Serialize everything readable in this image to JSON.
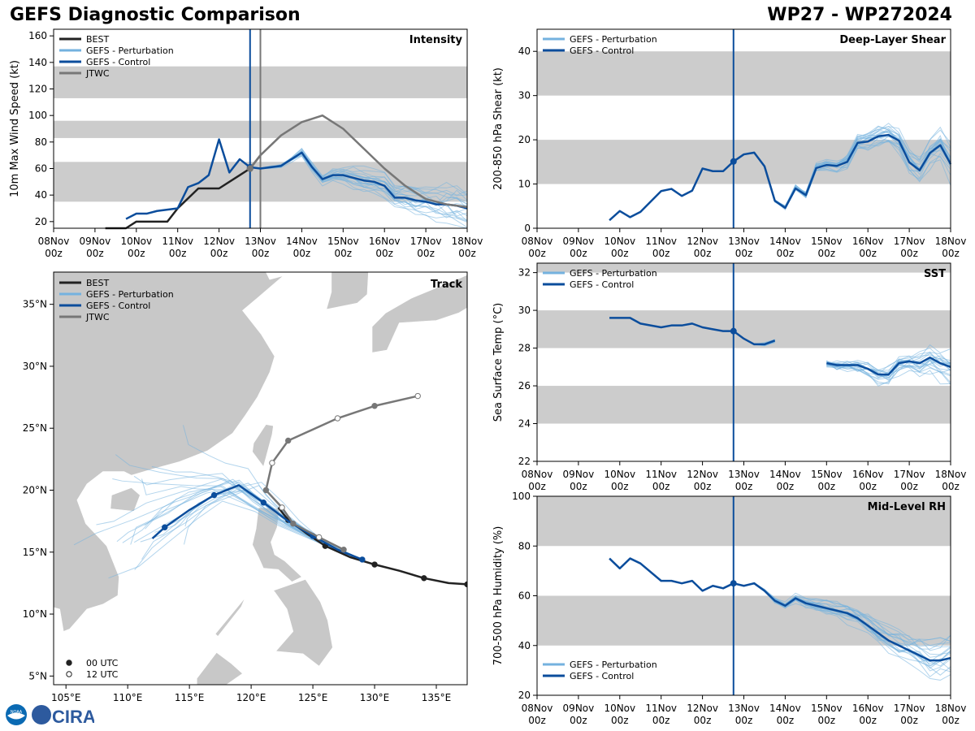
{
  "header": {
    "title": "GEFS Diagnostic Comparison",
    "storm": "WP27 - WP272024"
  },
  "colors": {
    "best": "#222222",
    "perturbation": "#74b2df",
    "control": "#0b4d9c",
    "jtwc": "#777777",
    "band": "#cccccc",
    "land": "#c8c8c8"
  },
  "time_ticks": [
    "08Nov 00z",
    "09Nov 00z",
    "10Nov 00z",
    "11Nov 00z",
    "12Nov 00z",
    "13Nov 00z",
    "14Nov 00z",
    "15Nov 00z",
    "16Nov 00z",
    "17Nov 00z",
    "18Nov 00z"
  ],
  "logo": {
    "left": "NOAA",
    "right": "CIRA"
  },
  "chart_data": [
    {
      "id": "intensity",
      "type": "line",
      "title": "Intensity",
      "ylabel": "10m Max Wind Speed (kt)",
      "xlim": [
        0,
        10
      ],
      "ylim": [
        15,
        165
      ],
      "yticks": [
        20,
        40,
        60,
        80,
        100,
        120,
        140,
        160
      ],
      "bands": [
        [
          35,
          65
        ],
        [
          83,
          96
        ],
        [
          113,
          137
        ]
      ],
      "init_lines": [
        {
          "x": 4.75,
          "color": "control"
        },
        {
          "x": 5.0,
          "color": "jtwc"
        }
      ],
      "legend": [
        "BEST",
        "GEFS - Perturbation",
        "GEFS - Control",
        "JTWC"
      ],
      "series": [
        {
          "name": "BEST",
          "x": [
            1.25,
            1.75,
            2.0,
            2.25,
            2.5,
            2.75,
            3.0,
            3.5,
            4.0,
            4.5,
            4.75,
            5.0
          ],
          "values": [
            15,
            15,
            20,
            20,
            20,
            20,
            30,
            45,
            45,
            55,
            60,
            70
          ]
        },
        {
          "name": "GEFS - Control",
          "x": [
            1.75,
            2.0,
            2.25,
            2.5,
            3.0,
            3.25,
            3.5,
            3.75,
            4.0,
            4.25,
            4.5,
            4.75,
            5.0,
            5.25,
            5.5,
            5.75,
            6.0,
            6.25,
            6.5,
            6.75,
            7.0,
            7.25,
            7.5,
            7.75,
            8.0,
            8.25,
            8.5,
            8.75,
            9.0,
            9.25,
            9.5,
            9.75,
            10.0
          ],
          "values": [
            22,
            26,
            26,
            28,
            30,
            46,
            49,
            55,
            82,
            57,
            67,
            61,
            60,
            61,
            62,
            67,
            72,
            61,
            52,
            55,
            55,
            53,
            51,
            50,
            47,
            38,
            38,
            36,
            35,
            33,
            33,
            32,
            30
          ]
        },
        {
          "name": "JTWC",
          "x": [
            4.75,
            5.0,
            5.5,
            6.0,
            6.5,
            7.0,
            7.5,
            8.0,
            8.5,
            9.0,
            9.5,
            10.0
          ],
          "values": [
            60,
            70,
            85,
            95,
            100,
            90,
            75,
            60,
            47,
            37,
            33,
            31
          ]
        }
      ]
    },
    {
      "id": "track",
      "type": "scatter",
      "title": "Track",
      "xlim": [
        104,
        137.5
      ],
      "ylim": [
        4.3,
        37.6
      ],
      "xticks": [
        105,
        110,
        115,
        120,
        125,
        130,
        135
      ],
      "xticklabels": [
        "105°E",
        "110°E",
        "115°E",
        "120°E",
        "125°E",
        "130°E",
        "135°E"
      ],
      "yticks": [
        5,
        10,
        15,
        20,
        25,
        30,
        35
      ],
      "yticklabels": [
        "5°N",
        "10°N",
        "15°N",
        "20°N",
        "25°N",
        "30°N",
        "35°N"
      ],
      "legend": [
        "BEST",
        "GEFS - Perturbation",
        "GEFS - Control",
        "JTWC"
      ],
      "marker_legend": [
        "00 UTC",
        "12 UTC"
      ],
      "series": [
        {
          "name": "BEST",
          "lon": [
            137.5,
            136.0,
            134.0,
            132.0,
            130.0,
            128.0,
            126.0,
            124.5,
            123.0,
            122.2
          ],
          "lat": [
            12.4,
            12.5,
            12.9,
            13.5,
            14.0,
            14.6,
            15.5,
            16.5,
            17.6,
            18.6
          ]
        },
        {
          "name": "GEFS - Control",
          "lon": [
            129,
            127,
            125,
            123,
            121,
            119,
            117,
            115,
            113,
            112
          ],
          "lat": [
            14.4,
            15.2,
            16.3,
            17.5,
            19.0,
            20.4,
            19.6,
            18.4,
            17.0,
            16.1
          ]
        },
        {
          "name": "JTWC",
          "lon": [
            127.5,
            125.5,
            123.4,
            122.5,
            121.2,
            121.7,
            123,
            127,
            130,
            133.5
          ],
          "lat": [
            15.2,
            16.2,
            17.3,
            18.6,
            20.0,
            22.2,
            24.0,
            25.8,
            26.8,
            27.6
          ]
        }
      ]
    },
    {
      "id": "shear",
      "type": "line",
      "title": "Deep-Layer Shear",
      "ylabel": "200-850 hPa Shear (kt)",
      "xlim": [
        0,
        10
      ],
      "ylim": [
        0,
        45
      ],
      "yticks": [
        0,
        10,
        20,
        30,
        40
      ],
      "bands": [
        [
          10,
          20
        ],
        [
          30,
          40
        ]
      ],
      "init_lines": [
        {
          "x": 4.75,
          "color": "control"
        }
      ],
      "legend": [
        "GEFS - Perturbation",
        "GEFS - Control"
      ],
      "series": [
        {
          "name": "GEFS - Control",
          "x": [
            1.75,
            2.0,
            2.25,
            2.5,
            3.0,
            3.25,
            3.5,
            3.75,
            4.0,
            4.25,
            4.5,
            4.75,
            5.0,
            5.25,
            5.5,
            5.75,
            6.0,
            6.25,
            6.5,
            6.75,
            7.0,
            7.25,
            7.5,
            7.75,
            8.0,
            8.25,
            8.5,
            8.75,
            9.0,
            9.25,
            9.5,
            9.75,
            10.0
          ],
          "values": [
            1.8,
            3.9,
            2.5,
            3.7,
            8.4,
            8.9,
            7.3,
            8.5,
            13.5,
            12.9,
            12.9,
            15.1,
            16.7,
            17.1,
            14.0,
            6.2,
            4.6,
            9.0,
            7.5,
            13.6,
            14.3,
            14.1,
            15.0,
            19.3,
            19.6,
            20.8,
            21.1,
            19.8,
            14.9,
            13.1,
            17.0,
            18.8,
            14.5
          ]
        }
      ]
    },
    {
      "id": "sst",
      "type": "line",
      "title": "SST",
      "ylabel": "Sea Surface Temp (°C)",
      "xlim": [
        0,
        10
      ],
      "ylim": [
        22,
        32.5
      ],
      "yticks": [
        22,
        24,
        26,
        28,
        30,
        32
      ],
      "bands": [
        [
          24,
          26
        ],
        [
          28,
          30
        ],
        [
          32,
          32.5
        ]
      ],
      "init_lines": [
        {
          "x": 4.75,
          "color": "control"
        }
      ],
      "legend": [
        "GEFS - Perturbation",
        "GEFS - Control"
      ],
      "series": [
        {
          "name": "GEFS - Control",
          "x": [
            1.75,
            2.0,
            2.25,
            2.5,
            3.0,
            3.25,
            3.5,
            3.75,
            4.0,
            4.25,
            4.5,
            4.75,
            5.0,
            5.25,
            5.5,
            5.75,
            6.0
          ],
          "values": [
            29.6,
            29.6,
            29.6,
            29.3,
            29.1,
            29.2,
            29.2,
            29.3,
            29.1,
            29.0,
            28.9,
            28.9,
            28.5,
            28.2,
            28.2,
            28.4,
            null
          ]
        },
        {
          "name": "GEFS - Control (cont)",
          "x": [
            7.0,
            7.25,
            7.5,
            7.75,
            8.0,
            8.25,
            8.5,
            8.75,
            9.0,
            9.25,
            9.5,
            9.75,
            10.0
          ],
          "values": [
            27.2,
            27.1,
            27.1,
            27.1,
            26.9,
            26.6,
            26.6,
            27.2,
            27.3,
            27.2,
            27.5,
            27.2,
            27.0
          ]
        }
      ]
    },
    {
      "id": "rh",
      "type": "line",
      "title": "Mid-Level RH",
      "ylabel": "700-500 hPa Humidity (%)",
      "xlim": [
        0,
        10
      ],
      "ylim": [
        20,
        100
      ],
      "yticks": [
        20,
        40,
        60,
        80,
        100
      ],
      "bands": [
        [
          40,
          60
        ],
        [
          80,
          100
        ]
      ],
      "init_lines": [
        {
          "x": 4.75,
          "color": "control"
        }
      ],
      "legend": [
        "GEFS - Perturbation",
        "GEFS - Control"
      ],
      "series": [
        {
          "name": "GEFS - Control",
          "x": [
            1.75,
            2.0,
            2.25,
            2.5,
            3.0,
            3.25,
            3.5,
            3.75,
            4.0,
            4.25,
            4.5,
            4.75,
            5.0,
            5.25,
            5.5,
            5.75,
            6.0,
            6.25,
            6.5,
            6.75,
            7.0,
            7.25,
            7.5,
            7.75,
            8.0,
            8.25,
            8.5,
            8.75,
            9.0,
            9.25,
            9.5,
            9.75,
            10.0
          ],
          "values": [
            75,
            71,
            75,
            73,
            66,
            66,
            65,
            66,
            62,
            64,
            63,
            65,
            64,
            65,
            62,
            58,
            56,
            59,
            57,
            56,
            55,
            54,
            53,
            51,
            48,
            45,
            42,
            40,
            38,
            36,
            34,
            34,
            35
          ]
        }
      ]
    }
  ]
}
